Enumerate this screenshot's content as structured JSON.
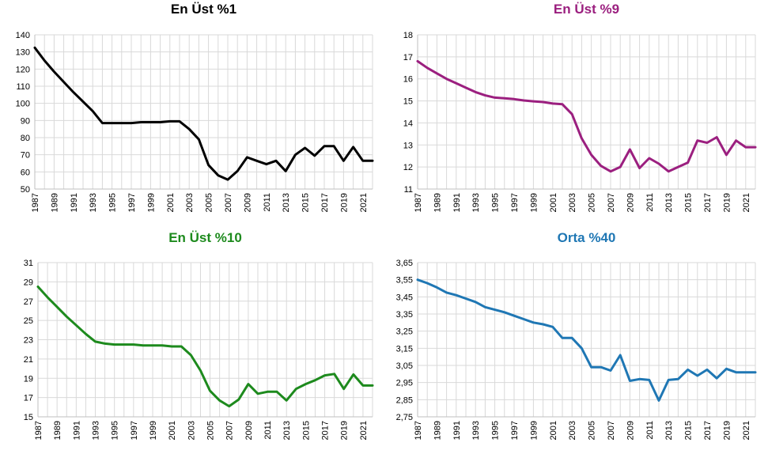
{
  "chart_data": [
    {
      "type": "line",
      "title": "En Üst %1",
      "color": "#000000",
      "x": [
        1987,
        1988,
        1989,
        1990,
        1991,
        1992,
        1993,
        1994,
        1995,
        1996,
        1997,
        1998,
        1999,
        2000,
        2001,
        2002,
        2003,
        2004,
        2005,
        2006,
        2007,
        2008,
        2009,
        2010,
        2011,
        2012,
        2013,
        2014,
        2015,
        2016,
        2017,
        2018,
        2019,
        2020,
        2021,
        2022
      ],
      "values": [
        132.5,
        125,
        118.5,
        112.5,
        106.5,
        101,
        95.5,
        88.5,
        88.5,
        88.5,
        88.5,
        89,
        89,
        89,
        89.5,
        89.5,
        85,
        79,
        64,
        58,
        55.5,
        60.5,
        68.5,
        66.5,
        64.5,
        66.5,
        60.5,
        70,
        74,
        69.5,
        75,
        75,
        66.5,
        74.5,
        66.5,
        66.5
      ],
      "ylim": [
        50,
        140
      ],
      "yticks": [
        "50",
        "60",
        "70",
        "80",
        "90",
        "100",
        "110",
        "120",
        "130",
        "140"
      ],
      "xticks": [
        "1987",
        "1989",
        "1991",
        "1993",
        "1995",
        "1997",
        "1999",
        "2001",
        "2003",
        "2005",
        "2007",
        "2009",
        "2011",
        "2013",
        "2015",
        "2017",
        "2019",
        "2021"
      ],
      "grid": true
    },
    {
      "type": "line",
      "title": "En Üst %9",
      "color": "#9b1f7f",
      "x": [
        1987,
        1988,
        1989,
        1990,
        1991,
        1992,
        1993,
        1994,
        1995,
        1996,
        1997,
        1998,
        1999,
        2000,
        2001,
        2002,
        2003,
        2004,
        2005,
        2006,
        2007,
        2008,
        2009,
        2010,
        2011,
        2012,
        2013,
        2014,
        2015,
        2016,
        2017,
        2018,
        2019,
        2020,
        2021,
        2022
      ],
      "values": [
        16.8,
        16.5,
        16.25,
        16.0,
        15.8,
        15.6,
        15.4,
        15.25,
        15.15,
        15.12,
        15.08,
        15.02,
        14.98,
        14.95,
        14.88,
        14.85,
        14.4,
        13.3,
        12.55,
        12.05,
        11.8,
        12.0,
        12.8,
        11.95,
        12.4,
        12.15,
        11.8,
        12.0,
        12.2,
        13.2,
        13.1,
        13.35,
        12.55,
        13.2,
        12.9,
        12.9
      ],
      "ylim": [
        11,
        18
      ],
      "yticks": [
        "11",
        "12",
        "13",
        "14",
        "15",
        "16",
        "17",
        "18"
      ],
      "xticks": [
        "1987",
        "1989",
        "1991",
        "1993",
        "1995",
        "1997",
        "1999",
        "2001",
        "2003",
        "2005",
        "2007",
        "2009",
        "2011",
        "2013",
        "2015",
        "2017",
        "2019",
        "2021"
      ],
      "grid": true
    },
    {
      "type": "line",
      "title": "En Üst %10",
      "color": "#1d8a1d",
      "x": [
        1987,
        1988,
        1989,
        1990,
        1991,
        1992,
        1993,
        1994,
        1995,
        1996,
        1997,
        1998,
        1999,
        2000,
        2001,
        2002,
        2003,
        2004,
        2005,
        2006,
        2007,
        2008,
        2009,
        2010,
        2011,
        2012,
        2013,
        2014,
        2015,
        2016,
        2017,
        2018,
        2019,
        2020,
        2021,
        2022
      ],
      "values": [
        28.5,
        27.4,
        26.4,
        25.4,
        24.5,
        23.6,
        22.8,
        22.6,
        22.5,
        22.5,
        22.5,
        22.4,
        22.4,
        22.4,
        22.3,
        22.3,
        21.4,
        19.8,
        17.7,
        16.7,
        16.1,
        16.8,
        18.4,
        17.4,
        17.6,
        17.6,
        16.7,
        17.9,
        18.4,
        18.8,
        19.3,
        19.45,
        17.9,
        19.4,
        18.25,
        18.25
      ],
      "ylim": [
        15,
        31
      ],
      "yticks": [
        "15",
        "17",
        "19",
        "21",
        "23",
        "25",
        "27",
        "29",
        "31"
      ],
      "xticks": [
        "1987",
        "1989",
        "1991",
        "1993",
        "1995",
        "1997",
        "1999",
        "2001",
        "2003",
        "2005",
        "2007",
        "2009",
        "2011",
        "2013",
        "2015",
        "2017",
        "2019",
        "2021"
      ],
      "grid": true
    },
    {
      "type": "line",
      "title": "Orta %40",
      "color": "#1f77b4",
      "x": [
        1987,
        1988,
        1989,
        1990,
        1991,
        1992,
        1993,
        1994,
        1995,
        1996,
        1997,
        1998,
        1999,
        2000,
        2001,
        2002,
        2003,
        2004,
        2005,
        2006,
        2007,
        2008,
        2009,
        2010,
        2011,
        2012,
        2013,
        2014,
        2015,
        2016,
        2017,
        2018,
        2019,
        2020,
        2021,
        2022
      ],
      "values": [
        3.55,
        3.53,
        3.505,
        3.475,
        3.46,
        3.44,
        3.42,
        3.39,
        3.375,
        3.36,
        3.34,
        3.32,
        3.3,
        3.29,
        3.275,
        3.21,
        3.21,
        3.15,
        3.04,
        3.04,
        3.02,
        3.11,
        2.96,
        2.97,
        2.965,
        2.845,
        2.965,
        2.97,
        3.025,
        2.99,
        3.025,
        2.975,
        3.03,
        3.01,
        3.01,
        3.01
      ],
      "ylim": [
        2.75,
        3.65
      ],
      "yticks": [
        "2,75",
        "2,85",
        "2,95",
        "3,05",
        "3,15",
        "3,25",
        "3,35",
        "3,45",
        "3,55",
        "3,65"
      ],
      "xticks": [
        "1987",
        "1989",
        "1991",
        "1993",
        "1995",
        "1997",
        "1999",
        "2001",
        "2003",
        "2005",
        "2007",
        "2009",
        "2011",
        "2013",
        "2015",
        "2017",
        "2019",
        "2021"
      ],
      "grid": true
    }
  ]
}
